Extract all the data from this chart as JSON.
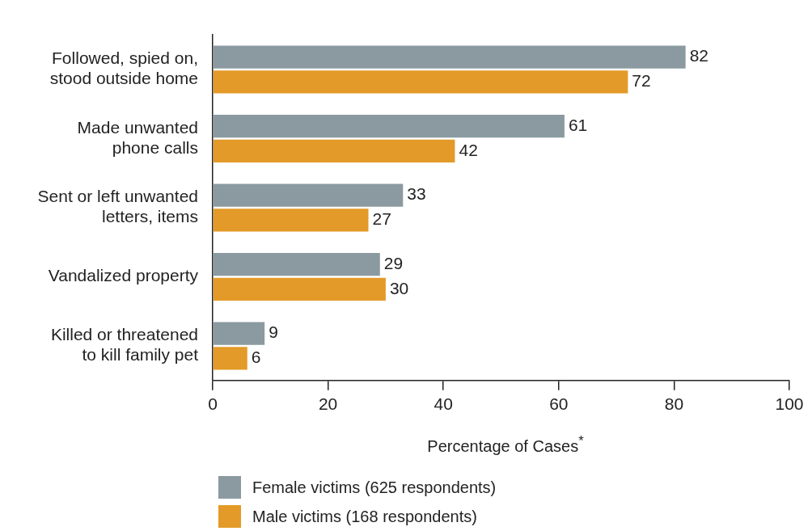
{
  "chart_data": {
    "type": "bar",
    "orientation": "horizontal",
    "xlabel": "Percentage of Cases$^{*}$",
    "categories": [
      "Followed, spied on,\nstood outside home",
      "Made unwanted\nphone calls",
      "Sent or left unwanted\nletters, items",
      "Vandalized property",
      "Killed or threatened\nto kill family pet"
    ],
    "series": [
      {
        "name": "Female victims (625 respondents)",
        "color": "#8a9aa0",
        "values": [
          82,
          61,
          33,
          29,
          9
        ]
      },
      {
        "name": "Male victims (168 respondents)",
        "color": "#e39a28",
        "values": [
          72,
          42,
          27,
          30,
          6
        ]
      }
    ],
    "xlim": [
      0,
      100
    ],
    "xticks": [
      0,
      20,
      40,
      60,
      80,
      100
    ],
    "grid": false,
    "legend": "bottom left",
    "data_labels": true
  }
}
